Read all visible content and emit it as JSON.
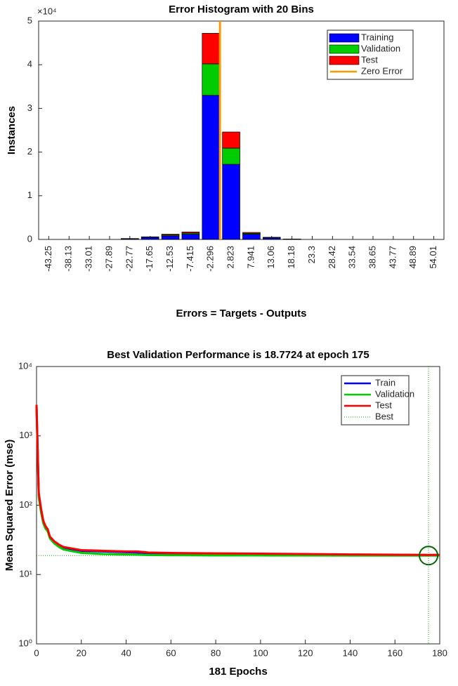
{
  "chart_data": [
    {
      "type": "bar",
      "stacked": true,
      "title": "Error Histogram with 20 Bins",
      "y_exponent_label": "×10⁴",
      "ylabel": "Instances",
      "xlabel": "Errors = Targets - Outputs",
      "x": [
        -43.25,
        -38.13,
        -33.01,
        -27.89,
        -22.77,
        -17.65,
        -12.53,
        -7.415,
        -2.296,
        2.823,
        7.941,
        13.06,
        18.18,
        23.3,
        28.42,
        33.54,
        38.65,
        43.77,
        48.89,
        54.01
      ],
      "xlim": [
        -45.81,
        56.57
      ],
      "ylim": [
        0,
        5
      ],
      "yticks": [
        0,
        1,
        2,
        3,
        4,
        5
      ],
      "grid": false,
      "legend": "upper right",
      "series": [
        {
          "name": "Training",
          "color": "#0000ff",
          "values": [
            0,
            0,
            0,
            0,
            0.015,
            0.045,
            0.08,
            0.12,
            3.3,
            1.72,
            0.12,
            0.035,
            0.008,
            0,
            0,
            0,
            0,
            0,
            0,
            0
          ]
        },
        {
          "name": "Validation",
          "color": "#00cc00",
          "values": [
            0,
            0,
            0,
            0,
            0.003,
            0.008,
            0.02,
            0.025,
            0.72,
            0.37,
            0.02,
            0.008,
            0.001,
            0,
            0,
            0,
            0,
            0,
            0,
            0
          ]
        },
        {
          "name": "Test",
          "color": "#ff0000",
          "values": [
            0,
            0,
            0,
            0,
            0.003,
            0.007,
            0.02,
            0.025,
            0.7,
            0.37,
            0.02,
            0.007,
            0.001,
            0,
            0,
            0,
            0,
            0,
            0,
            0
          ]
        }
      ],
      "reference_line": {
        "name": "Zero Error",
        "value": 0,
        "color": "#ff9900"
      }
    },
    {
      "type": "line",
      "log_y": true,
      "title": "Best Validation Performance is 18.7724 at epoch 175",
      "xlabel": "181 Epochs",
      "ylabel": "Mean Squared Error  (mse)",
      "x": [
        0,
        1,
        2,
        3,
        4,
        5,
        6,
        8,
        10,
        12,
        15,
        20,
        30,
        40,
        45,
        50,
        60,
        80,
        100,
        120,
        140,
        160,
        175,
        180
      ],
      "xlim": [
        0,
        180
      ],
      "xticks": [
        0,
        20,
        40,
        60,
        80,
        100,
        120,
        140,
        160,
        180
      ],
      "ylim": [
        1,
        10000
      ],
      "yticks": [
        {
          "value": 1,
          "label": "10⁰"
        },
        {
          "value": 10,
          "label": "10¹"
        },
        {
          "value": 100,
          "label": "10²"
        },
        {
          "value": 1000,
          "label": "10³"
        },
        {
          "value": 10000,
          "label": "10⁴"
        }
      ],
      "legend": "upper right",
      "series": [
        {
          "name": "Train",
          "color": "#0000ff",
          "values": [
            2700,
            140,
            85,
            58,
            48,
            43,
            34,
            29,
            26,
            24.5,
            23.5,
            22,
            21.5,
            21,
            20.8,
            20.3,
            20,
            19.7,
            19.5,
            19.3,
            19.1,
            19,
            18.9,
            18.9
          ]
        },
        {
          "name": "Validation",
          "color": "#00cc00",
          "values": [
            2600,
            130,
            80,
            55,
            46,
            42,
            33,
            28,
            25,
            23,
            22,
            20.5,
            19.8,
            19.5,
            19.3,
            19.1,
            19,
            18.9,
            18.85,
            18.8,
            18.78,
            18.775,
            18.7724,
            18.78
          ]
        },
        {
          "name": "Test",
          "color": "#ff0000",
          "values": [
            2800,
            150,
            90,
            60,
            50,
            45,
            35,
            30,
            27,
            25,
            24,
            22.5,
            22,
            21.5,
            21.5,
            20.8,
            20.5,
            20.2,
            20,
            19.8,
            19.5,
            19.3,
            19.2,
            19.2
          ]
        }
      ],
      "best": {
        "name": "Best",
        "epoch": 175,
        "value": 18.7724,
        "color": "#00aa00"
      }
    }
  ]
}
